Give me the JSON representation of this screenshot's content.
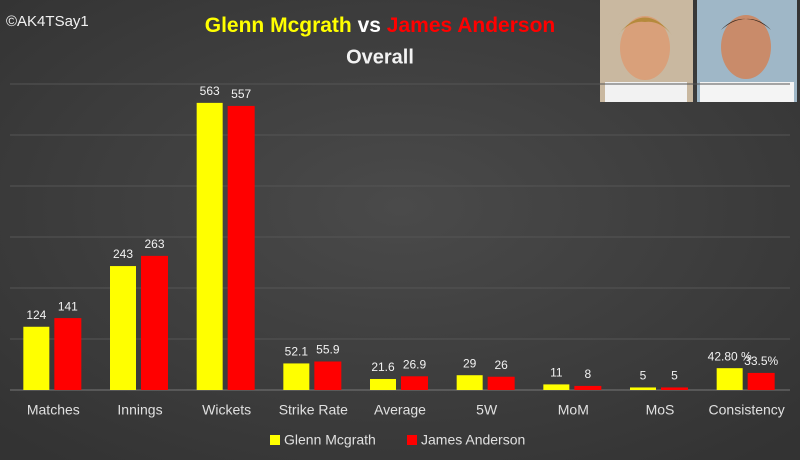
{
  "chart_data": {
    "type": "bar",
    "title": [
      "Glenn Mcgrath",
      "vs",
      "James Anderson"
    ],
    "subtitle": "Overall",
    "watermark": "©AK4TSay1",
    "categories": [
      "Matches",
      "Innings",
      "Wickets",
      "Strike Rate",
      "Average",
      "5W",
      "MoM",
      "MoS",
      "Consistency"
    ],
    "series": [
      {
        "name": "Glenn Mcgrath",
        "color": "#ffff00",
        "values": [
          124,
          243,
          563,
          52.1,
          21.6,
          29,
          11,
          5,
          42.8
        ],
        "value_labels": [
          "124",
          "243",
          "563",
          "52.1",
          "21.6",
          "29",
          "11",
          "5",
          "42.80 %"
        ]
      },
      {
        "name": "James Anderson",
        "color": "#ff0000",
        "values": [
          141,
          263,
          557,
          55.9,
          26.9,
          26,
          8,
          5,
          33.5
        ],
        "value_labels": [
          "141",
          "263",
          "557",
          "55.9",
          "26.9",
          "26",
          "8",
          "5",
          "33.5%"
        ]
      }
    ],
    "ylim": [
      0,
      600
    ],
    "yticks": [
      0,
      100,
      200,
      300,
      400,
      500,
      600
    ],
    "grid": true,
    "legend": "bottom"
  }
}
